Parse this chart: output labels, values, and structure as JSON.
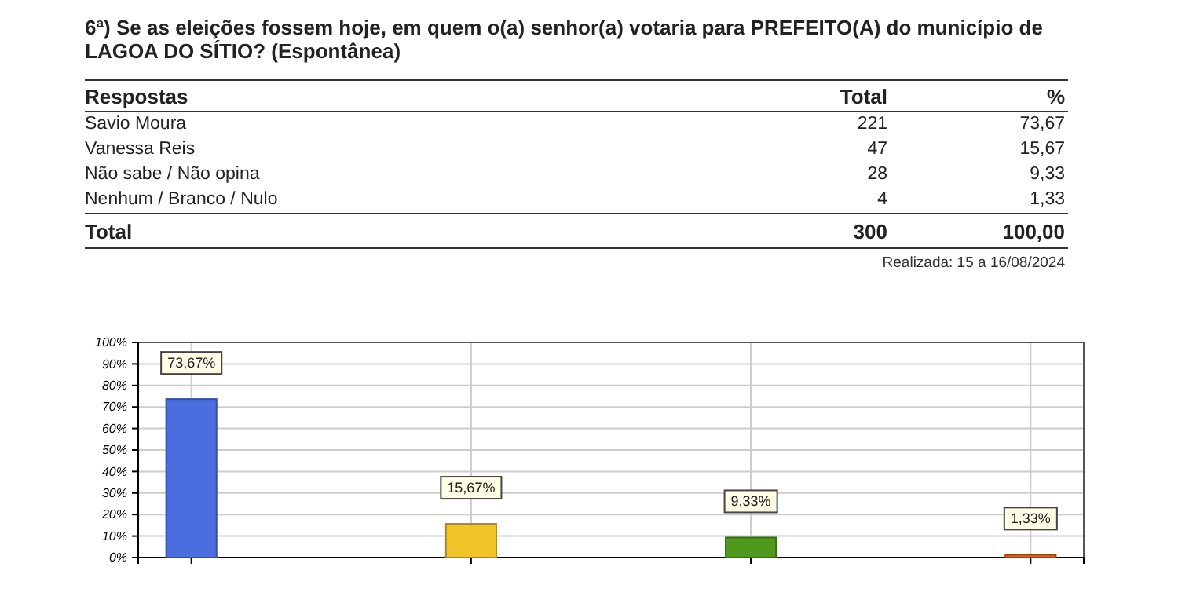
{
  "chart_data": [
    {
      "type": "other",
      "title": "6ª) Se as eleições fossem hoje, em quem o(a) senhor(a) votaria para PREFEITO(A) do município de LAGOA DO SÍTIO? (Espontânea)",
      "annotations": [
        "Respostas",
        "Total",
        "%",
        "Savio Moura",
        "221",
        "73,67",
        "Vanessa Reis",
        "47",
        "15,67",
        "Não sabe / Não opina",
        "28",
        "9,33",
        "Nenhum / Branco / Nulo",
        "4",
        "1,33",
        "Total",
        "300",
        "100,00",
        "Realizada:  15 a 16/08/2024"
      ]
    },
    {
      "type": "bar",
      "categories": [
        null,
        null,
        null,
        null
      ],
      "values": [
        73.67,
        15.67,
        9.33,
        1.33
      ],
      "colors": [
        "#4a6ee0",
        "#f2c42a",
        "#4f9a1c",
        "#e0631a"
      ],
      "value_labels": [
        "73,67%",
        "15,67%",
        "9,33%",
        "1,33%"
      ],
      "ylim": [
        0,
        100
      ],
      "yticks": [
        {
          "value": 0,
          "label": "0%"
        },
        {
          "value": 10,
          "label": "10%"
        },
        {
          "value": 20,
          "label": "20%"
        },
        {
          "value": 30,
          "label": "30%"
        },
        {
          "value": 40,
          "label": "40%"
        },
        {
          "value": 50,
          "label": "50%"
        },
        {
          "value": 60,
          "label": "60%"
        },
        {
          "value": 70,
          "label": "70%"
        },
        {
          "value": 80,
          "label": "80%"
        },
        {
          "value": 90,
          "label": "90%"
        },
        {
          "value": 100,
          "label": "100%"
        }
      ],
      "grid": true
    }
  ]
}
